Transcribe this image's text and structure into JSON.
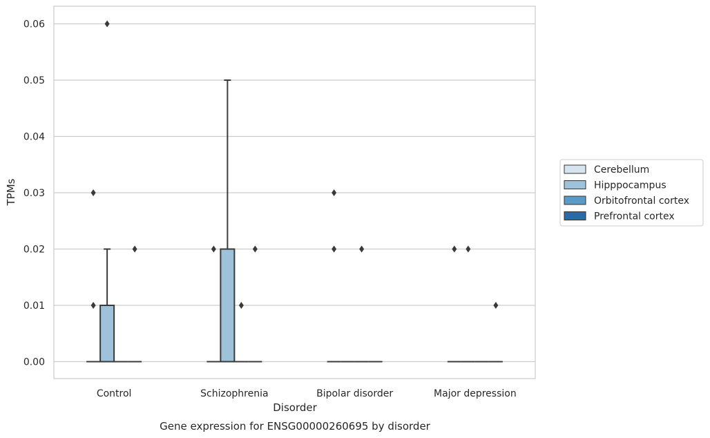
{
  "caption": "Gene expression for ENSG00000260695 by disorder",
  "chart_data": {
    "type": "box",
    "title": "",
    "xlabel": "Disorder",
    "ylabel": "TPMs",
    "ylim": [
      -0.003,
      0.063
    ],
    "yticks": [
      "0.00",
      "0.01",
      "0.02",
      "0.03",
      "0.04",
      "0.05",
      "0.06"
    ],
    "grid": true,
    "legend_position": "right",
    "categories": [
      "Control",
      "Schizophrenia",
      "Bipolar disorder",
      "Major depression"
    ],
    "series": [
      {
        "name": "Cerebellum",
        "color": "#d6e4f0",
        "boxes": [
          {
            "q1": 0,
            "median": 0,
            "q3": 0,
            "whisker_low": 0,
            "whisker_high": 0,
            "outliers": [
              0.01,
              0.03
            ]
          },
          {
            "q1": 0,
            "median": 0,
            "q3": 0,
            "whisker_low": 0,
            "whisker_high": 0,
            "outliers": [
              0.02
            ]
          },
          {
            "q1": 0,
            "median": 0,
            "q3": 0,
            "whisker_low": 0,
            "whisker_high": 0,
            "outliers": [
              0.02,
              0.03
            ]
          },
          {
            "q1": 0,
            "median": 0,
            "q3": 0,
            "whisker_low": 0,
            "whisker_high": 0,
            "outliers": [
              0.02
            ]
          }
        ]
      },
      {
        "name": "Hipppocampus",
        "color": "#9dc2da",
        "boxes": [
          {
            "q1": 0,
            "median": 0,
            "q3": 0.01,
            "whisker_low": 0,
            "whisker_high": 0.02,
            "outliers": [
              0.06
            ]
          },
          {
            "q1": 0,
            "median": 0,
            "q3": 0.02,
            "whisker_low": 0,
            "whisker_high": 0.05,
            "outliers": []
          },
          {
            "q1": 0,
            "median": 0,
            "q3": 0,
            "whisker_low": 0,
            "whisker_high": 0,
            "outliers": []
          },
          {
            "q1": 0,
            "median": 0,
            "q3": 0,
            "whisker_low": 0,
            "whisker_high": 0,
            "outliers": [
              0.02
            ]
          }
        ]
      },
      {
        "name": "Orbitofrontal cortex",
        "color": "#5a9ac6",
        "boxes": [
          {
            "q1": 0,
            "median": 0,
            "q3": 0,
            "whisker_low": 0,
            "whisker_high": 0,
            "outliers": []
          },
          {
            "q1": 0,
            "median": 0,
            "q3": 0,
            "whisker_low": 0,
            "whisker_high": 0,
            "outliers": [
              0.01
            ]
          },
          {
            "q1": 0,
            "median": 0,
            "q3": 0,
            "whisker_low": 0,
            "whisker_high": 0,
            "outliers": [
              0.02
            ]
          },
          {
            "q1": 0,
            "median": 0,
            "q3": 0,
            "whisker_low": 0,
            "whisker_high": 0,
            "outliers": []
          }
        ]
      },
      {
        "name": "Prefrontal cortex",
        "color": "#2a6aab",
        "boxes": [
          {
            "q1": 0,
            "median": 0,
            "q3": 0,
            "whisker_low": 0,
            "whisker_high": 0,
            "outliers": [
              0.02
            ]
          },
          {
            "q1": 0,
            "median": 0,
            "q3": 0,
            "whisker_low": 0,
            "whisker_high": 0,
            "outliers": [
              0.02
            ]
          },
          {
            "q1": 0,
            "median": 0,
            "q3": 0,
            "whisker_low": 0,
            "whisker_high": 0,
            "outliers": []
          },
          {
            "q1": 0,
            "median": 0,
            "q3": 0,
            "whisker_low": 0,
            "whisker_high": 0,
            "outliers": [
              0.01
            ]
          }
        ]
      }
    ]
  }
}
